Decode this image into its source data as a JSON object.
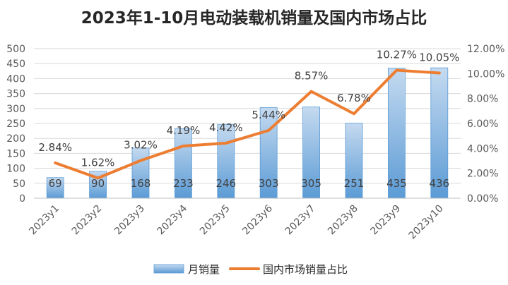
{
  "chart_data": {
    "type": "bar",
    "title": "2023年1-10月电动装载机销量及国内市场占比",
    "categories": [
      "2023y1",
      "2023y2",
      "2023y3",
      "2023y4",
      "2023y5",
      "2023y6",
      "2023y7",
      "2023y8",
      "2023y9",
      "2023y10"
    ],
    "series": [
      {
        "name": "月销量",
        "type": "bar",
        "axis": "left",
        "values": [
          69,
          90,
          168,
          233,
          246,
          303,
          305,
          251,
          435,
          436
        ],
        "labels": [
          "69",
          "90",
          "168",
          "233",
          "246",
          "303",
          "305",
          "251",
          "435",
          "436"
        ],
        "color_top": "#c5daf0",
        "color_bottom": "#5b9bd5"
      },
      {
        "name": "国内市场销量占比",
        "type": "line",
        "axis": "right",
        "values": [
          2.84,
          1.62,
          3.02,
          4.19,
          4.42,
          5.44,
          8.57,
          6.78,
          10.27,
          10.05
        ],
        "labels": [
          "2.84%",
          "1.62%",
          "3.02%",
          "4.19%",
          "4.42%",
          "5.44%",
          "8.57%",
          "6.78%",
          "10.27%",
          "10.05%"
        ],
        "color": "#ed7d31"
      }
    ],
    "y_left": {
      "ylim": [
        0,
        500
      ],
      "ticks": [
        "0",
        "50",
        "100",
        "150",
        "200",
        "250",
        "300",
        "350",
        "400",
        "450",
        "500"
      ]
    },
    "y_right": {
      "ylim": [
        0,
        12
      ],
      "ticks": [
        "0.00%",
        "2.00%",
        "4.00%",
        "6.00%",
        "8.00%",
        "10.00%",
        "12.00%"
      ]
    },
    "grid": true,
    "legend_position": "bottom"
  }
}
